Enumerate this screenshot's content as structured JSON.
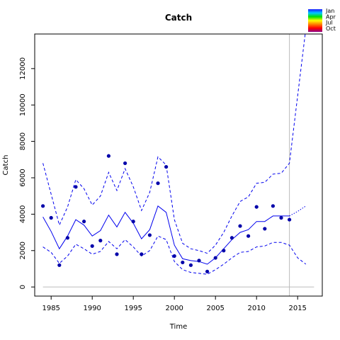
{
  "chart_data": {
    "type": "line",
    "title": "Catch",
    "xlabel": "Time",
    "ylabel": "Catch",
    "xlim": [
      1983,
      2018
    ],
    "ylim": [
      -500,
      13900
    ],
    "x_ticks": [
      1985,
      1990,
      1995,
      2000,
      2005,
      2010,
      2015
    ],
    "y_ticks": [
      0,
      2000,
      4000,
      6000,
      8000,
      10000,
      12000
    ],
    "reference_line_y": 0,
    "vertical_line_x": 2014,
    "grid": false,
    "legend": {
      "position": "top-right",
      "entries": [
        "Jan",
        "Apr",
        "Jul",
        "Oct"
      ],
      "gradient_colors": [
        "#1a1aff",
        "#00c8ff",
        "#00e000",
        "#ffff00",
        "#ff8000",
        "#ff0000",
        "#8b008b"
      ]
    },
    "colors": {
      "series": "#0000ee",
      "points": "#0000aa",
      "reference": "#bbbbbb",
      "vline": "#bbbbbb"
    },
    "observed": {
      "x": [
        1984,
        1985,
        1986,
        1987,
        1988,
        1989,
        1990,
        1991,
        1992,
        1993,
        1994,
        1995,
        1996,
        1997,
        1998,
        1999,
        2000,
        2001,
        2002,
        2003,
        2004,
        2005,
        2006,
        2007,
        2008,
        2009,
        2010,
        2011,
        2012,
        2013,
        2014
      ],
      "y": [
        4450,
        3800,
        1200,
        2700,
        5500,
        3600,
        2250,
        2550,
        7200,
        1800,
        6800,
        3600,
        1800,
        2850,
        5700,
        6600,
        1700,
        1350,
        1200,
        1450,
        850,
        1600,
        2000,
        2700,
        3350,
        2800,
        4400,
        3200,
        4450,
        3800,
        3700
      ]
    },
    "series": [
      {
        "role": "fit",
        "style": "solid",
        "x": [
          1984,
          1985,
          1986,
          1987,
          1988,
          1989,
          1990,
          1991,
          1992,
          1993,
          1994,
          1995,
          1996,
          1997,
          1998,
          1999,
          2000,
          2001,
          2002,
          2003,
          2004,
          2005,
          2006,
          2007,
          2008,
          2009,
          2010,
          2011,
          2012,
          2013,
          2014
        ],
        "y": [
          3850,
          3050,
          2100,
          2800,
          3700,
          3400,
          2800,
          3100,
          3950,
          3300,
          4100,
          3500,
          2650,
          3150,
          4450,
          4100,
          2300,
          1550,
          1450,
          1400,
          1250,
          1600,
          2100,
          2600,
          3000,
          3150,
          3600,
          3600,
          3900,
          3900,
          3900
        ]
      },
      {
        "role": "upper-interval",
        "style": "dashed",
        "x": [
          1984,
          1985,
          1986,
          1987,
          1988,
          1989,
          1990,
          1991,
          1992,
          1993,
          1994,
          1995,
          1996,
          1997,
          1998,
          1999,
          2000,
          2001,
          2002,
          2003,
          2004,
          2005,
          2006,
          2007,
          2008,
          2009,
          2010,
          2011,
          2012,
          2013,
          2014,
          2015,
          2016
        ],
        "y": [
          6800,
          5100,
          3400,
          4400,
          5900,
          5400,
          4500,
          5000,
          6300,
          5300,
          6500,
          5500,
          4200,
          5200,
          7150,
          6700,
          3700,
          2400,
          2100,
          2000,
          1850,
          2300,
          3000,
          3900,
          4700,
          4950,
          5700,
          5750,
          6200,
          6250,
          6800,
          10500,
          14200
        ]
      },
      {
        "role": "lower-interval",
        "style": "dashed",
        "x": [
          1984,
          1985,
          1986,
          1987,
          1988,
          1989,
          1990,
          1991,
          1992,
          1993,
          1994,
          1995,
          1996,
          1997,
          1998,
          1999,
          2000,
          2001,
          2002,
          2003,
          2004,
          2005,
          2006,
          2007,
          2008,
          2009,
          2010,
          2011,
          2012,
          2013,
          2014,
          2015,
          2016
        ],
        "y": [
          2200,
          1900,
          1300,
          1700,
          2350,
          2100,
          1800,
          1950,
          2500,
          2100,
          2600,
          2200,
          1700,
          2000,
          2800,
          2600,
          1400,
          950,
          800,
          750,
          700,
          950,
          1250,
          1600,
          1900,
          1950,
          2200,
          2250,
          2450,
          2450,
          2300,
          1600,
          1250
        ]
      },
      {
        "role": "forecast",
        "style": "dotted",
        "x": [
          2014,
          2015,
          2016
        ],
        "y": [
          3900,
          4150,
          4450
        ]
      }
    ]
  }
}
